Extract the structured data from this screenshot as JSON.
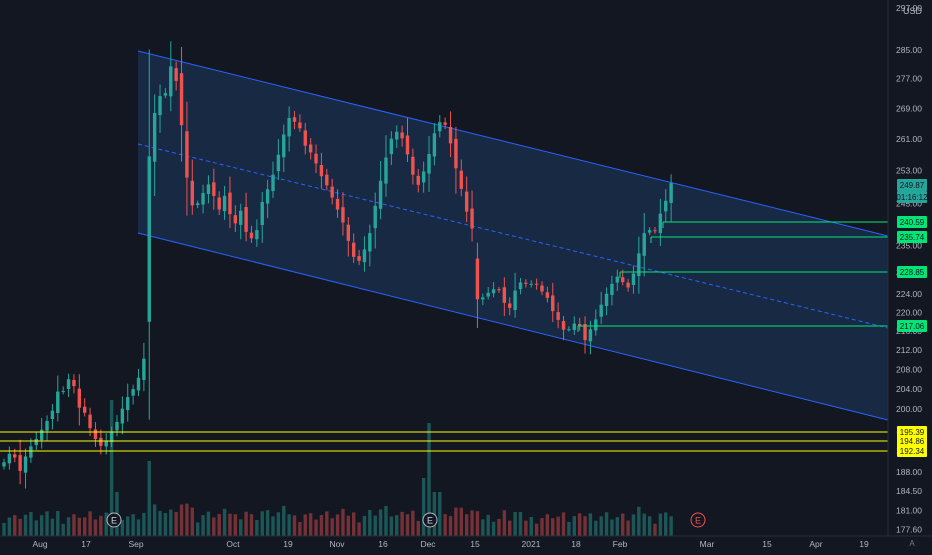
{
  "chart_data": {
    "type": "candlestick",
    "title": "",
    "currency": "USD",
    "y_axis": {
      "scale": "log",
      "range": [
        176.5,
        297
      ],
      "ticks": [
        297.0,
        285.0,
        277.0,
        269.0,
        261.0,
        253.0,
        245.0,
        235.0,
        229.0,
        224.0,
        220.0,
        216.0,
        212.0,
        208.0,
        204.0,
        200.0,
        196.0,
        192.0,
        188.0,
        184.5,
        181.0,
        177.6
      ],
      "tick_labels": [
        "297.00",
        "285.00",
        "277.00",
        "269.00",
        "261.00",
        "253.00",
        "245.00",
        "235.00",
        "229.00",
        "224.00",
        "220.00",
        "216.00",
        "212.00",
        "208.00",
        "204.00",
        "200.00",
        "196.00",
        "192.00",
        "188.00",
        "184.50",
        "181.00",
        "177.60"
      ]
    },
    "x_axis": {
      "labels": [
        "Aug",
        "17",
        "Sep",
        "Oct",
        "19",
        "Nov",
        "16",
        "Dec",
        "15",
        "2021",
        "18",
        "Feb",
        "Mar",
        "15",
        "Apr",
        "19"
      ]
    },
    "price_labels": {
      "last": {
        "value": "249.87",
        "countdown": "01:16:12"
      },
      "levels": [
        {
          "value": "240.59",
          "color": "#00e676"
        },
        {
          "value": "235.74",
          "color": "#00e676"
        },
        {
          "value": "228.85",
          "color": "#00e676"
        },
        {
          "value": "217.06",
          "color": "#00e676"
        },
        {
          "value": "195.39",
          "color": "#ffff00"
        },
        {
          "value": "194.86",
          "color": "#ffff00"
        },
        {
          "value": "192.34",
          "color": "#ffff00"
        }
      ]
    },
    "horizontal_levels": [
      240.59,
      235.74,
      228.85,
      217.06,
      195.39,
      194.86,
      192.34
    ],
    "earnings_markers": [
      "E",
      "E",
      "E"
    ],
    "colors": {
      "up": "#26a69a",
      "down": "#ef5350",
      "channel": "#2962ff",
      "channel_fill": "#1e3a5f",
      "support": "#00e676",
      "yellow": "#ffff00",
      "background": "#131722"
    },
    "candles_close": [
      189.8,
      191.4,
      190.7,
      188.2,
      190.9,
      192.8,
      194.2,
      196.0,
      197.7,
      199.7,
      203.5,
      203.6,
      206.0,
      204.6,
      200.3,
      199.3,
      196.3,
      194.2,
      192.9,
      193.8,
      195.5,
      197.5,
      200.1,
      202.4,
      204.0,
      206.3,
      210.2,
      256.6,
      267.8,
      272.3,
      273.1,
      280.4,
      276.4,
      264.6,
      251.3,
      244.5,
      245.0,
      247.5,
      249.6,
      246.8,
      243.5,
      246.8,
      242.4,
      240.2,
      243.2,
      238.2,
      236.7,
      238.6,
      245.3,
      248.4,
      252.0,
      257.0,
      262.2,
      266.5,
      265.5,
      263.8,
      259.3,
      257.6,
      254.8,
      251.6,
      249.4,
      246.4,
      243.5,
      240.4,
      236.1,
      232.4,
      231.5,
      234.1,
      237.9,
      244.4,
      250.5,
      256.3,
      261.1,
      262.9,
      261.2,
      257.1,
      252.0,
      249.5,
      252.8,
      257.2,
      262.5,
      265.4,
      264.7,
      259.9,
      253.6,
      248.5,
      243.0,
      239.0,
      222.9,
      223.3,
      224.3,
      225.1,
      225.0,
      222.1,
      221.0,
      224.8,
      226.6,
      226.3,
      226.3,
      226.1,
      224.6,
      223.2,
      220.3,
      218.4,
      216.3,
      216.4,
      217.6,
      217.0,
      214.1,
      216.4,
      218.5,
      221.7,
      224.1,
      226.3,
      227.9,
      226.7,
      225.5,
      228.6,
      233.2,
      237.9,
      238.6,
      238.4,
      242.5,
      245.6,
      249.9
    ]
  }
}
